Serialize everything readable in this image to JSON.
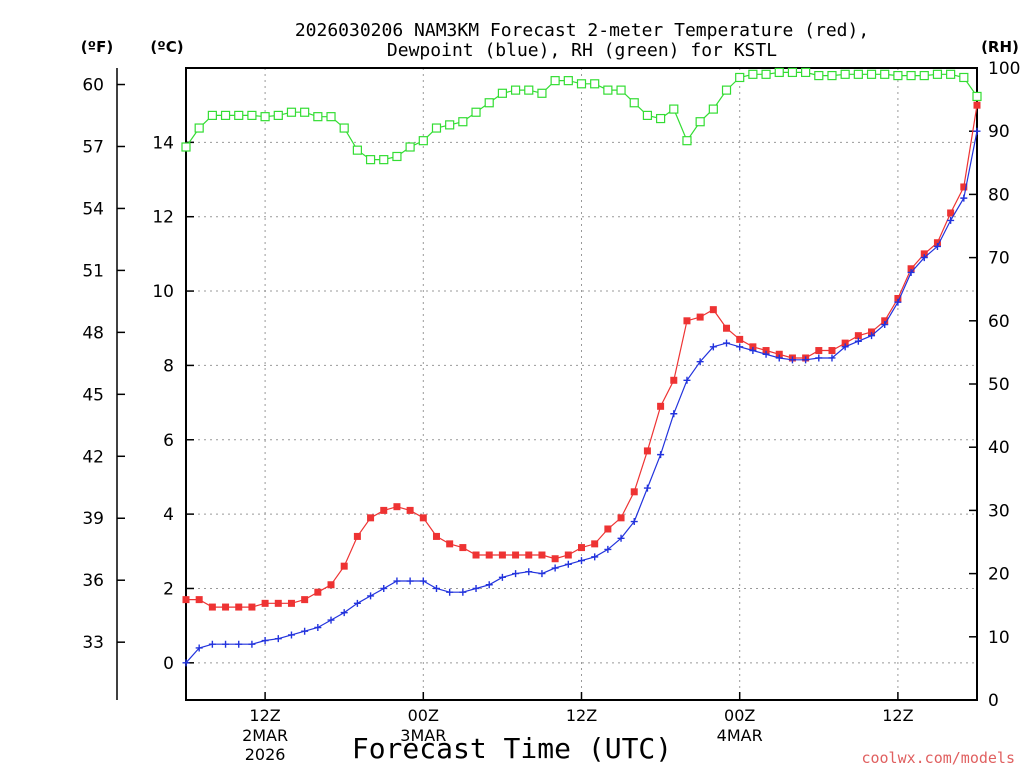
{
  "chart_data": {
    "type": "line",
    "title_line1": "2026030206 NAM3KM Forecast 2-meter Temperature (red),",
    "title_line2": "Dewpoint (blue), RH (green) for KSTL",
    "xlabel": "Forecast Time (UTC)",
    "credit": "coolwx.com/models",
    "unit_labels": {
      "fahrenheit": "(ºF)",
      "celsius": "(ºC)",
      "rh": "(RH)"
    },
    "x_ticks": [
      {
        "hour": 6,
        "label1": "12Z",
        "label2": "2MAR",
        "label3": "2026"
      },
      {
        "hour": 18,
        "label1": "00Z",
        "label2": "3MAR",
        "label3": ""
      },
      {
        "hour": 30,
        "label1": "12Z",
        "label2": "",
        "label3": ""
      },
      {
        "hour": 42,
        "label1": "00Z",
        "label2": "4MAR",
        "label3": ""
      },
      {
        "hour": 54,
        "label1": "12Z",
        "label2": "",
        "label3": ""
      }
    ],
    "xlim": [
      0,
      60
    ],
    "celsius_axis": {
      "ylim": [
        -1,
        16
      ],
      "ticks": [
        0,
        2,
        4,
        6,
        8,
        10,
        12,
        14
      ]
    },
    "fahrenheit_axis": {
      "ticks": [
        33,
        36,
        39,
        42,
        45,
        48,
        51,
        54,
        57,
        60
      ]
    },
    "rh_axis": {
      "ylim": [
        0,
        100
      ],
      "ticks": [
        0,
        10,
        20,
        30,
        40,
        50,
        60,
        70,
        80,
        90,
        100
      ]
    },
    "series": [
      {
        "name": "Temperature",
        "unit": "C",
        "color": "#ee3333",
        "marker": "filled-square",
        "values": [
          1.7,
          1.7,
          1.5,
          1.5,
          1.5,
          1.5,
          1.6,
          1.6,
          1.6,
          1.7,
          1.9,
          2.1,
          2.6,
          3.4,
          3.9,
          4.1,
          4.2,
          4.1,
          3.9,
          3.4,
          3.2,
          3.1,
          2.9,
          2.9,
          2.9,
          2.9,
          2.9,
          2.9,
          2.8,
          2.9,
          3.1,
          3.2,
          3.6,
          3.9,
          4.6,
          5.7,
          6.9,
          7.6,
          9.2,
          9.3,
          9.5,
          9.0,
          8.7,
          8.5,
          8.4,
          8.3,
          8.2,
          8.2,
          8.4,
          8.4,
          8.6,
          8.8,
          8.9,
          9.2,
          9.8,
          10.6,
          11.0,
          11.3,
          12.1,
          12.8,
          15.0
        ]
      },
      {
        "name": "Dewpoint",
        "unit": "C",
        "color": "#2233dd",
        "marker": "plus",
        "values": [
          0.0,
          0.4,
          0.5,
          0.5,
          0.5,
          0.5,
          0.6,
          0.65,
          0.75,
          0.85,
          0.95,
          1.15,
          1.35,
          1.6,
          1.8,
          2.0,
          2.2,
          2.2,
          2.2,
          2.0,
          1.9,
          1.9,
          2.0,
          2.1,
          2.3,
          2.4,
          2.45,
          2.4,
          2.55,
          2.65,
          2.75,
          2.85,
          3.05,
          3.35,
          3.8,
          4.7,
          5.6,
          6.7,
          7.6,
          8.1,
          8.5,
          8.6,
          8.5,
          8.4,
          8.3,
          8.2,
          8.15,
          8.15,
          8.2,
          8.2,
          8.5,
          8.65,
          8.8,
          9.1,
          9.7,
          10.5,
          10.9,
          11.2,
          11.9,
          12.5,
          14.3
        ]
      },
      {
        "name": "RH",
        "unit": "%",
        "color": "#33dd33",
        "marker": "open-square",
        "values": [
          87.5,
          90.5,
          92.5,
          92.5,
          92.5,
          92.5,
          92.3,
          92.5,
          93.0,
          93.0,
          92.3,
          92.3,
          90.5,
          87.0,
          85.5,
          85.5,
          86.0,
          87.5,
          88.5,
          90.5,
          91.0,
          91.5,
          93.0,
          94.5,
          96.0,
          96.5,
          96.5,
          96.0,
          98.0,
          98.0,
          97.5,
          97.5,
          96.5,
          96.5,
          94.5,
          92.5,
          92.0,
          93.5,
          88.5,
          91.5,
          93.5,
          96.5,
          98.5,
          99.0,
          99.0,
          99.3,
          99.3,
          99.3,
          98.8,
          98.8,
          99.0,
          99.0,
          99.0,
          99.0,
          98.8,
          98.8,
          98.8,
          99.0,
          99.0,
          98.5,
          95.5
        ]
      }
    ]
  }
}
